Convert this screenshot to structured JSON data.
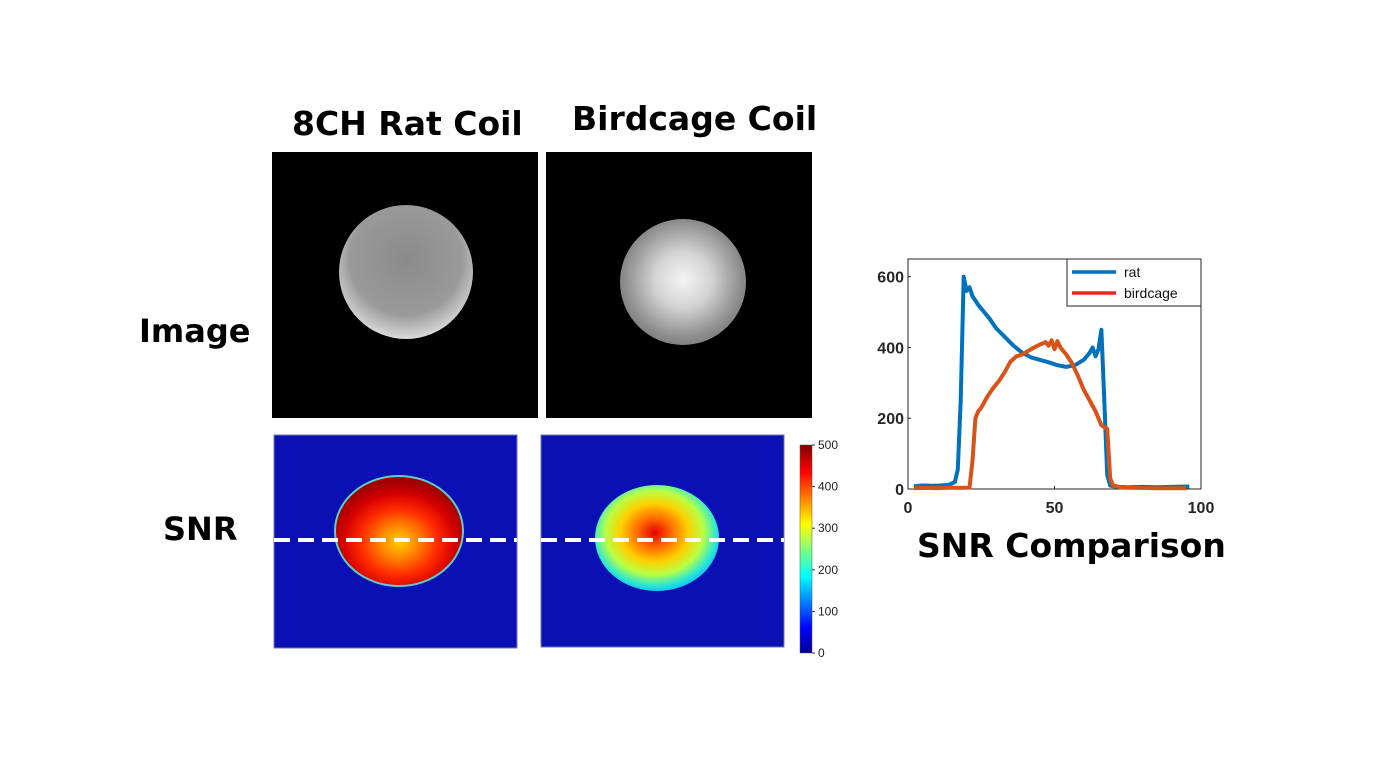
{
  "columns": {
    "col1": "8CH Rat Coil",
    "col2": "Birdcage Coil"
  },
  "rows": {
    "image": "Image",
    "snr": "SNR"
  },
  "colorbar": {
    "ticks": [
      "500",
      "400",
      "300",
      "200",
      "100",
      "0"
    ],
    "min": 0,
    "max": 500,
    "colormap": "jet"
  },
  "chart_title": "SNR Comparison",
  "colors": {
    "rat": "#0072bd",
    "birdcage": "#d95319",
    "legend_birdcage_swatch": "#e8291c"
  },
  "chart_data": {
    "type": "line",
    "title": "SNR Comparison",
    "xlabel": "",
    "ylabel": "",
    "xlim": [
      0,
      100
    ],
    "ylim": [
      0,
      650
    ],
    "xticks": [
      "0",
      "50",
      "100"
    ],
    "yticks": [
      "0",
      "200",
      "400",
      "600"
    ],
    "legend": {
      "position": "top-right",
      "entries": [
        "rat",
        "birdcage"
      ]
    },
    "series": [
      {
        "name": "rat",
        "x": [
          2,
          5,
          8,
          11,
          14,
          16,
          17,
          18,
          19,
          20,
          21,
          22,
          24,
          26,
          28,
          30,
          33,
          36,
          39,
          42,
          45,
          48,
          51,
          54,
          57,
          60,
          62,
          63,
          64,
          65,
          66,
          67,
          68,
          69,
          70,
          72,
          75,
          80,
          85,
          90,
          96
        ],
        "y": [
          8,
          10,
          9,
          10,
          12,
          20,
          55,
          250,
          600,
          560,
          570,
          545,
          520,
          500,
          480,
          455,
          430,
          405,
          385,
          372,
          365,
          358,
          350,
          345,
          350,
          365,
          385,
          400,
          375,
          395,
          450,
          250,
          40,
          10,
          8,
          6,
          5,
          6,
          5,
          6,
          7
        ]
      },
      {
        "name": "birdcage",
        "x": [
          2,
          6,
          10,
          14,
          18,
          21,
          22,
          23,
          24,
          25,
          27,
          29,
          31,
          33,
          35,
          37,
          39,
          41,
          43,
          45,
          47,
          48,
          49,
          50,
          51,
          52,
          54,
          56,
          58,
          60,
          62,
          64,
          66,
          67,
          68,
          69,
          70,
          73,
          78,
          85,
          95
        ],
        "y": [
          2,
          3,
          2,
          4,
          3,
          4,
          80,
          200,
          220,
          230,
          260,
          285,
          305,
          330,
          360,
          375,
          380,
          390,
          400,
          408,
          415,
          405,
          420,
          395,
          418,
          400,
          380,
          355,
          320,
          280,
          250,
          220,
          180,
          175,
          170,
          30,
          10,
          4,
          3,
          2,
          2
        ]
      }
    ]
  }
}
